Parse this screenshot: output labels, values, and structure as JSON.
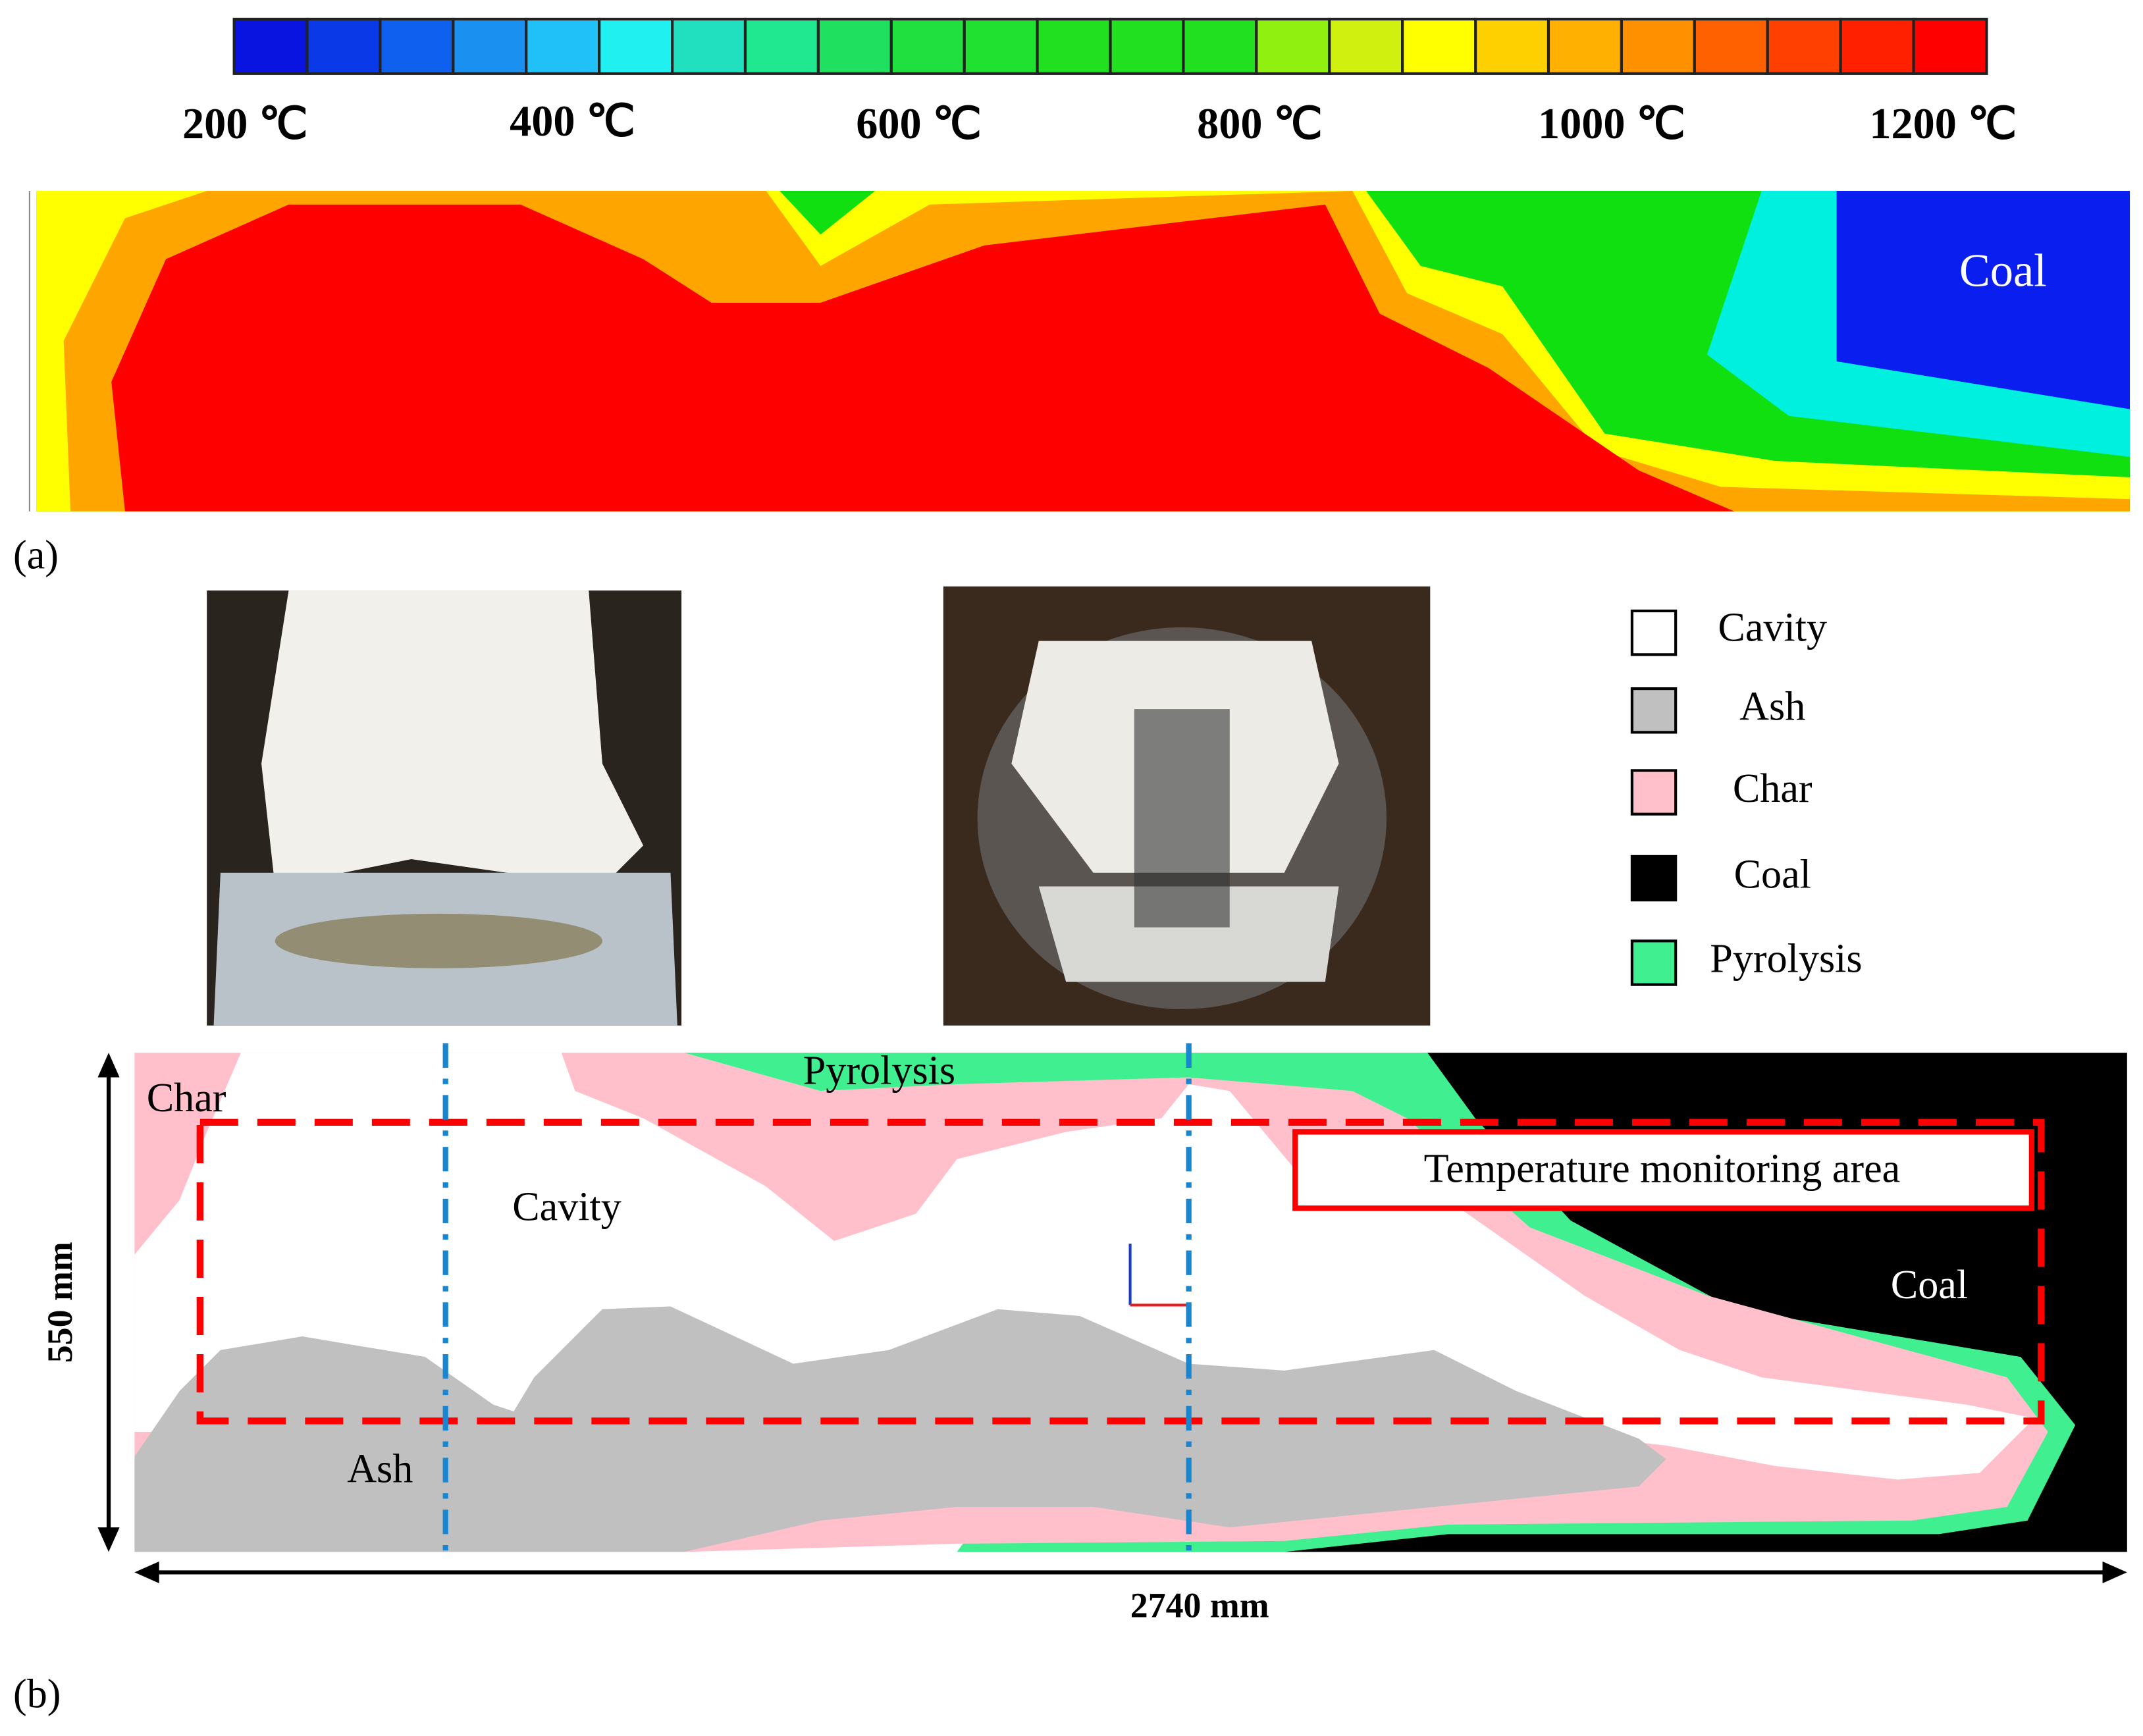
{
  "colorbar": {
    "labels": [
      "200 ℃",
      "400 ℃",
      "600 ℃",
      "800 ℃",
      "1000 ℃",
      "1200 ℃"
    ]
  },
  "panel_a": {
    "label": "(a)",
    "region_label": "Coal"
  },
  "panel_b": {
    "label": "(b)",
    "legend": [
      "Cavity",
      "Ash",
      "Char",
      "Coal",
      "Pyrolysis"
    ],
    "regions": {
      "char": "Char",
      "pyrolysis": "Pyrolysis",
      "cavity": "Cavity",
      "coal": "Coal",
      "ash": "Ash"
    },
    "monitoring_label": "Temperature monitoring area",
    "height_label": "550 mm",
    "width_label": "2740 mm"
  }
}
